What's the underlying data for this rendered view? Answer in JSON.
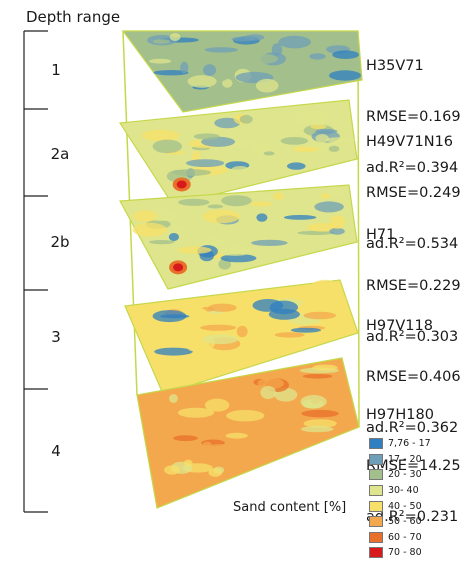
{
  "depth_axis": {
    "title": "Depth range",
    "segments": [
      "1",
      "2a",
      "2b",
      "3",
      "4"
    ]
  },
  "layers": [
    {
      "model": "H35V71",
      "rmse": "RMSE=0.169",
      "adr2": "ad.R²=0.394",
      "dominant_class": "20 - 30"
    },
    {
      "model": "H49V71N16",
      "rmse": "RMSE=0.249",
      "adr2": "ad.R²=0.534",
      "dominant_class": "30- 40"
    },
    {
      "model": "H71",
      "rmse": "RMSE=0.229",
      "adr2": "ad.R²=0.303",
      "dominant_class": "30- 40"
    },
    {
      "model": "H97V118",
      "rmse": "RMSE=0.406",
      "adr2": "ad.R²=0.362",
      "dominant_class": "40 - 50"
    },
    {
      "model": "H97H180",
      "rmse": "RMSE=14.25",
      "adr2": "ad.R²=0.231",
      "dominant_class": "50 - 60"
    }
  ],
  "x_axis_label": "Sand content [%]",
  "legend": [
    {
      "label": "7,76 - 17",
      "color": "#2f7fc1"
    },
    {
      "label": "17 - 20",
      "color": "#6f9fb8"
    },
    {
      "label": "20 - 30",
      "color": "#a3bf8c"
    },
    {
      "label": "30- 40",
      "color": "#dfe58c"
    },
    {
      "label": "40 - 50",
      "color": "#f7e06a"
    },
    {
      "label": "50 - 60",
      "color": "#f4a84d"
    },
    {
      "label": "60 - 70",
      "color": "#e8702a"
    },
    {
      "label": "70 - 80",
      "color": "#d7191c"
    }
  ],
  "frame_color": "#c5d84a"
}
